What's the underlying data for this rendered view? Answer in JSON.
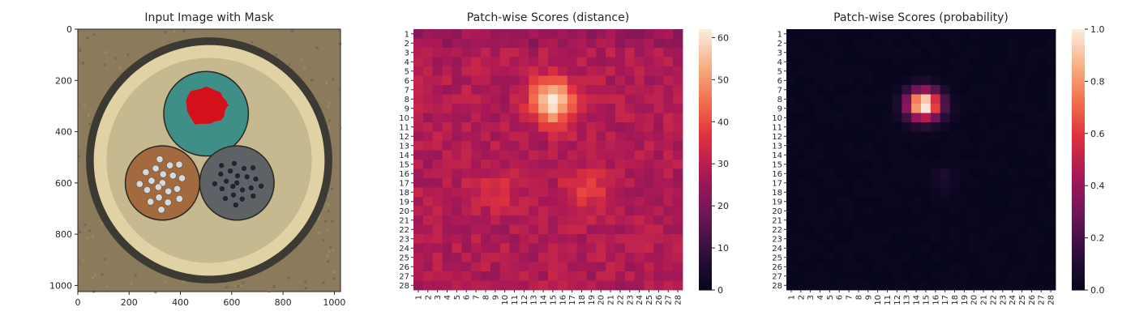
{
  "chart_data": [
    {
      "type": "image",
      "title": "Input Image with Mask",
      "xticks": [
        0,
        200,
        400,
        600,
        800,
        1000
      ],
      "yticks": [
        0,
        200,
        400,
        600,
        800,
        1000
      ],
      "xlim": [
        0,
        1024
      ],
      "ylim": [
        1024,
        0
      ],
      "image": {
        "background": "#8b7a5b",
        "rim_outer": {
          "cx": 512,
          "cy": 512,
          "r": 480,
          "color": "#3d3a33"
        },
        "rim_inner": {
          "cx": 512,
          "cy": 512,
          "r": 450,
          "color": "#e1d2a6"
        },
        "disk_inner": {
          "cx": 512,
          "cy": 512,
          "r": 400,
          "color": "#c7b98f"
        },
        "cables": [
          {
            "name": "teal",
            "cx": 500,
            "cy": 330,
            "r": 165,
            "color": "#3f8f89",
            "core_color": "#1f3f3b"
          },
          {
            "name": "brown",
            "cx": 330,
            "cy": 600,
            "r": 145,
            "color": "#a26a3e",
            "core_color": "#d8d8d8"
          },
          {
            "name": "grey",
            "cx": 620,
            "cy": 600,
            "r": 145,
            "color": "#5e6266",
            "core_color": "#23252a"
          }
        ],
        "mask": {
          "cx": 500,
          "cy": 300,
          "r": 85,
          "color": "#d4101a"
        }
      }
    },
    {
      "type": "heatmap",
      "title": "Patch-wise Scores (distance)",
      "rows": 28,
      "cols": 28,
      "tick_labels": [
        "1",
        "2",
        "3",
        "4",
        "5",
        "6",
        "7",
        "8",
        "9",
        "10",
        "11",
        "12",
        "13",
        "14",
        "15",
        "16",
        "17",
        "18",
        "19",
        "20",
        "21",
        "22",
        "23",
        "24",
        "25",
        "26",
        "27",
        "28"
      ],
      "colormap": "rocket",
      "vmin": 0,
      "vmax": 62,
      "colorbar_ticks": [
        0,
        10,
        20,
        30,
        40,
        50,
        60
      ],
      "values_description": "28x28 grid; background ~27-33, hotspot peak ~62 near row 8, col 15; secondary region ~40 around rows 16-20, cols 8-20"
    },
    {
      "type": "heatmap",
      "title": "Patch-wise Scores (probability)",
      "rows": 28,
      "cols": 28,
      "tick_labels": [
        "1",
        "2",
        "3",
        "4",
        "5",
        "6",
        "7",
        "8",
        "9",
        "10",
        "11",
        "12",
        "13",
        "14",
        "15",
        "16",
        "17",
        "18",
        "19",
        "20",
        "21",
        "22",
        "23",
        "24",
        "25",
        "26",
        "27",
        "28"
      ],
      "colormap": "rocket",
      "vmin": 0,
      "vmax": 1,
      "colorbar_ticks": [
        "0.0",
        "0.2",
        "0.4",
        "0.6",
        "0.8",
        "1.0"
      ],
      "values_description": "28x28 grid; near 0 everywhere except hotspot ~1.0 around rows 7-10, cols 13-16"
    }
  ]
}
